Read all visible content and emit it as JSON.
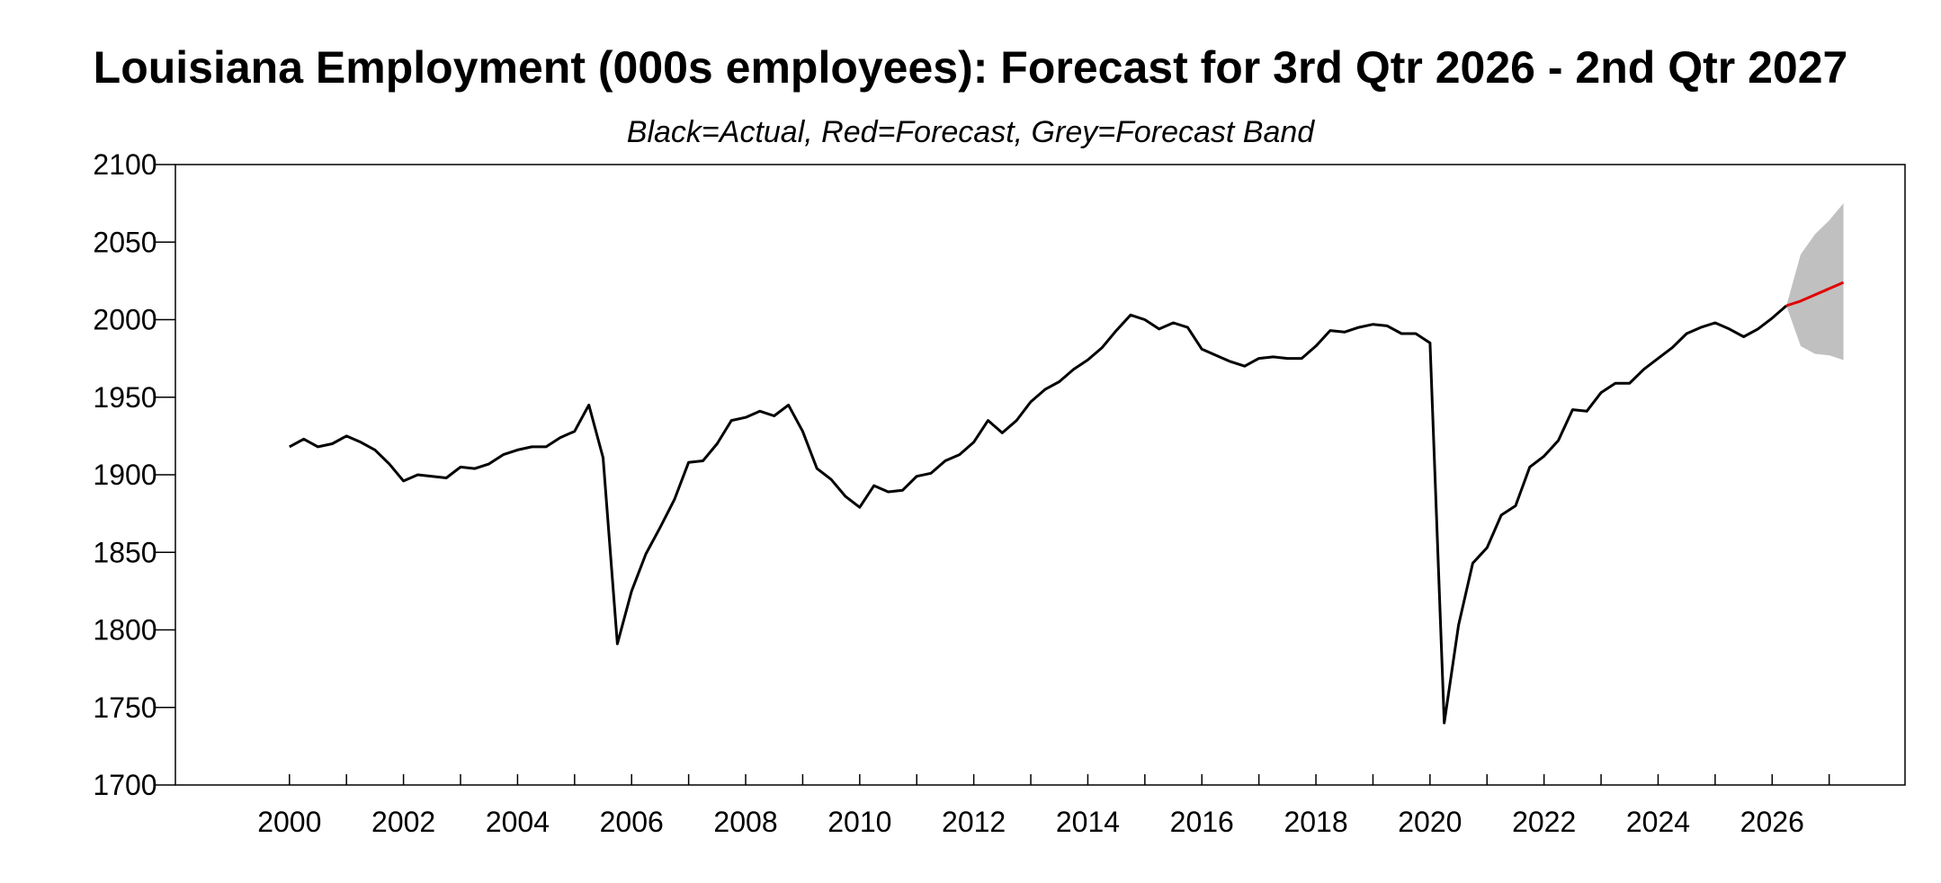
{
  "chart_data": {
    "type": "line",
    "title": "Louisiana Employment (000s employees): Forecast for 3rd Qtr 2026 - 2nd Qtr 2027",
    "subtitle": "Black=Actual, Red=Forecast, Grey=Forecast Band",
    "xlabel": "",
    "ylabel": "",
    "xlim": [
      1998.0,
      2028.33
    ],
    "ylim": [
      1700,
      2100
    ],
    "yticks": [
      1700,
      1750,
      1800,
      1850,
      1900,
      1950,
      2000,
      2050,
      2100
    ],
    "xtick_labels": [
      "2000",
      "2002",
      "2004",
      "2006",
      "2008",
      "2010",
      "2012",
      "2014",
      "2016",
      "2018",
      "2020",
      "2022",
      "2024",
      "2026"
    ],
    "xtick_values": [
      2000,
      2002,
      2004,
      2006,
      2008,
      2010,
      2012,
      2014,
      2016,
      2018,
      2020,
      2022,
      2024,
      2026
    ],
    "grid": false,
    "colors": {
      "actual": "#000000",
      "forecast": "#e00000",
      "band": "#c0c0c0"
    },
    "series": [
      {
        "role": "actual",
        "x": [
          2000.0,
          2000.25,
          2000.5,
          2000.75,
          2001.0,
          2001.25,
          2001.5,
          2001.75,
          2002.0,
          2002.25,
          2002.5,
          2002.75,
          2003.0,
          2003.25,
          2003.5,
          2003.75,
          2004.0,
          2004.25,
          2004.5,
          2004.75,
          2005.0,
          2005.25,
          2005.5,
          2005.75,
          2006.0,
          2006.25,
          2006.5,
          2006.75,
          2007.0,
          2007.25,
          2007.5,
          2007.75,
          2008.0,
          2008.25,
          2008.5,
          2008.75,
          2009.0,
          2009.25,
          2009.5,
          2009.75,
          2010.0,
          2010.25,
          2010.5,
          2010.75,
          2011.0,
          2011.25,
          2011.5,
          2011.75,
          2012.0,
          2012.25,
          2012.5,
          2012.75,
          2013.0,
          2013.25,
          2013.5,
          2013.75,
          2014.0,
          2014.25,
          2014.5,
          2014.75,
          2015.0,
          2015.25,
          2015.5,
          2015.75,
          2016.0,
          2016.25,
          2016.5,
          2016.75,
          2017.0,
          2017.25,
          2017.5,
          2017.75,
          2018.0,
          2018.25,
          2018.5,
          2018.75,
          2019.0,
          2019.25,
          2019.5,
          2019.75,
          2020.0,
          2020.25,
          2020.5,
          2020.75,
          2021.0,
          2021.25,
          2021.5,
          2021.75,
          2022.0,
          2022.25,
          2022.5,
          2022.75,
          2023.0,
          2023.25,
          2023.5,
          2023.75,
          2024.0,
          2024.25,
          2024.5,
          2024.75,
          2025.0,
          2025.25,
          2025.5,
          2025.75,
          2026.0,
          2026.25
        ],
        "values": [
          1918,
          1923,
          1918,
          1920,
          1925,
          1921,
          1916,
          1907,
          1896,
          1900,
          1899,
          1898,
          1905,
          1904,
          1907,
          1913,
          1916,
          1918,
          1918,
          1924,
          1928,
          1945,
          1911,
          1791,
          1825,
          1849,
          1866,
          1884,
          1908,
          1909,
          1920,
          1935,
          1937,
          1941,
          1938,
          1945,
          1928,
          1904,
          1897,
          1886,
          1879,
          1893,
          1889,
          1890,
          1899,
          1901,
          1909,
          1913,
          1921,
          1935,
          1927,
          1935,
          1947,
          1955,
          1960,
          1968,
          1974,
          1982,
          1993,
          2003,
          2000,
          1994,
          1998,
          1995,
          1981,
          1977,
          1973,
          1970,
          1975,
          1976,
          1975,
          1975,
          1983,
          1993,
          1992,
          1995,
          1997,
          1996,
          1991,
          1991,
          1985,
          1740,
          1803,
          1843,
          1853,
          1874,
          1880,
          1905,
          1912,
          1922,
          1942,
          1941,
          1953,
          1959,
          1959,
          1968,
          1975,
          1982,
          1991,
          1995,
          1998,
          1994,
          1989,
          1994,
          2001,
          2009
        ]
      },
      {
        "role": "forecast",
        "x": [
          2026.25,
          2026.5,
          2026.75,
          2027.0,
          2027.25
        ],
        "values": [
          2009,
          2012,
          2016,
          2020,
          2024
        ]
      }
    ],
    "band": {
      "x": [
        2026.25,
        2026.5,
        2026.75,
        2027.0,
        2027.25
      ],
      "upper": [
        2009,
        2042,
        2055,
        2064,
        2075
      ],
      "lower": [
        2009,
        1983,
        1978,
        1977,
        1974
      ]
    }
  }
}
